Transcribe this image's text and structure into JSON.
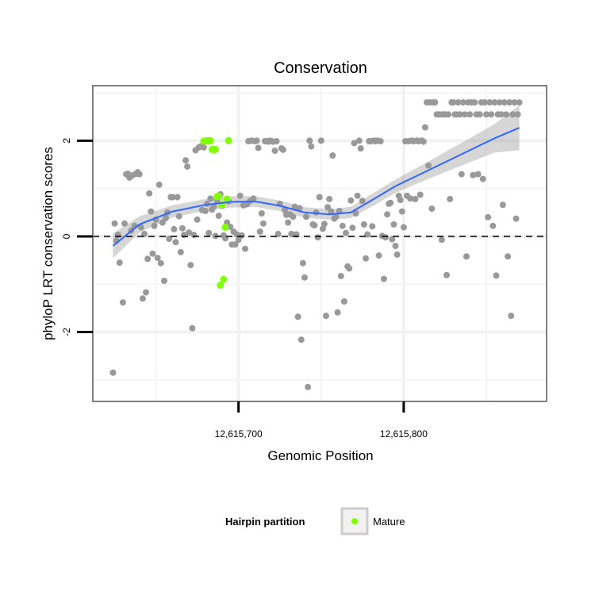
{
  "chart_data": {
    "type": "scatter",
    "title": "Conservation",
    "xlabel": "Genomic Position",
    "ylabel": "phyloP LRT conservation scores",
    "xlim": [
      12615611.8,
      12615886.5
    ],
    "ylim": [
      -3.45,
      3.15
    ],
    "x_ticks": [
      12615700,
      12615800
    ],
    "x_tick_labels": [
      "12,615,700",
      "12,615,800"
    ],
    "y_ticks": [
      -2,
      0,
      2
    ],
    "y_tick_labels": [
      "-2",
      "0",
      "2"
    ],
    "grid": true,
    "reference_line": {
      "y": 0,
      "style": "dashed"
    },
    "legend": {
      "title": "Hairpin partition",
      "entries": [
        "Mature"
      ],
      "position": "bottom"
    },
    "colors": {
      "points": "#999999",
      "mature": "#7FFF00",
      "smooth": "#3366FF",
      "ribbon": "#999999"
    },
    "series": [
      {
        "name": "",
        "color": "#999999",
        "points": [
          [
            12615624,
            -2.85
          ],
          [
            12615625,
            0.27
          ],
          [
            12615626,
            -0.09
          ],
          [
            12615627,
            0.03
          ],
          [
            12615628,
            -0.55
          ],
          [
            12615630,
            -1.38
          ],
          [
            12615631,
            0.27
          ],
          [
            12615632,
            1.3
          ],
          [
            12615633,
            1.31
          ],
          [
            12615634,
            1.23
          ],
          [
            12615635,
            0.12
          ],
          [
            12615636,
            1.28
          ],
          [
            12615637,
            0.22
          ],
          [
            12615638,
            1.31
          ],
          [
            12615639,
            1.34
          ],
          [
            12615640,
            1.3
          ],
          [
            12615641,
            0.19
          ],
          [
            12615642,
            -1.3
          ],
          [
            12615643,
            0.05
          ],
          [
            12615644,
            -1.17
          ],
          [
            12615645,
            -0.47
          ],
          [
            12615646,
            0.9
          ],
          [
            12615647,
            0.52
          ],
          [
            12615648,
            -0.36
          ],
          [
            12615649,
            0.22
          ],
          [
            12615650,
            0.35
          ],
          [
            12615651,
            -0.45
          ],
          [
            12615652,
            1.08
          ],
          [
            12615653,
            -0.56
          ],
          [
            12615654,
            0.29
          ],
          [
            12615655,
            -0.93
          ],
          [
            12615656,
            0.38
          ],
          [
            12615657,
            0.5
          ],
          [
            12615658,
            -0.05
          ],
          [
            12615659,
            0.82
          ],
          [
            12615660,
            0.82
          ],
          [
            12615661,
            0.15
          ],
          [
            12615662,
            -0.12
          ],
          [
            12615663,
            0.82
          ],
          [
            12615664,
            0.42
          ],
          [
            12615665,
            -0.33
          ],
          [
            12615666,
            0.17
          ],
          [
            12615667,
            0.03
          ],
          [
            12615668,
            1.59
          ],
          [
            12615669,
            1.46
          ],
          [
            12615670,
            0.08
          ],
          [
            12615671,
            -0.6
          ],
          [
            12615672,
            -1.92
          ],
          [
            12615673,
            0.03
          ],
          [
            12615674,
            1.8
          ],
          [
            12615675,
            0.35
          ],
          [
            12615676,
            1.86
          ],
          [
            12615677,
            1.88
          ],
          [
            12615678,
            0.55
          ],
          [
            12615679,
            1.86
          ],
          [
            12615680,
            0.53
          ],
          [
            12615681,
            0.68
          ],
          [
            12615682,
            0.07
          ],
          [
            12615683,
            0.79
          ],
          [
            12615684,
            0.56
          ],
          [
            12615685,
            0.62
          ],
          [
            12615686,
            0.01
          ],
          [
            12615687,
            0.75
          ],
          [
            12615688,
            0.43
          ],
          [
            12615689,
            0.88
          ],
          [
            12615690,
            0.64
          ],
          [
            12615691,
            0.02
          ],
          [
            12615692,
            -0.04
          ],
          [
            12615693,
            0.29
          ],
          [
            12615694,
            0.73
          ],
          [
            12615695,
            0.2
          ],
          [
            12615696,
            -0.17
          ],
          [
            12615697,
            0.1
          ],
          [
            12615698,
            -0.17
          ],
          [
            12615699,
            0.04
          ],
          [
            12615700,
            -0.07
          ],
          [
            12615701,
            0.85
          ],
          [
            12615702,
            0.02
          ],
          [
            12615703,
            0.65
          ],
          [
            12615704,
            -0.26
          ],
          [
            12615705,
            0.67
          ],
          [
            12615706,
            1.99
          ],
          [
            12615707,
            0.74
          ],
          [
            12615708,
            2.0
          ],
          [
            12615709,
            0.79
          ],
          [
            12615710,
            1.99
          ],
          [
            12615711,
            2.0
          ],
          [
            12615712,
            1.85
          ],
          [
            12615713,
            0.1
          ],
          [
            12615714,
            0.48
          ],
          [
            12615715,
            0.27
          ],
          [
            12615716,
            1.99
          ],
          [
            12615717,
            1.99
          ],
          [
            12615718,
            1.98
          ],
          [
            12615719,
            2.0
          ],
          [
            12615720,
            1.99
          ],
          [
            12615721,
            1.98
          ],
          [
            12615722,
            1.79
          ],
          [
            12615723,
            1.99
          ],
          [
            12615724,
            0.05
          ],
          [
            12615725,
            0.68
          ],
          [
            12615726,
            1.84
          ],
          [
            12615727,
            1.81
          ],
          [
            12615728,
            0.55
          ],
          [
            12615729,
            0.45
          ],
          [
            12615730,
            0.29
          ],
          [
            12615731,
            0.46
          ],
          [
            12615732,
            0.05
          ],
          [
            12615733,
            0.41
          ],
          [
            12615734,
            0.62
          ],
          [
            12615735,
            0.04
          ],
          [
            12615736,
            -1.68
          ],
          [
            12615737,
            0.59
          ],
          [
            12615738,
            -2.16
          ],
          [
            12615739,
            -0.56
          ],
          [
            12615740,
            -0.86
          ],
          [
            12615741,
            0.41
          ],
          [
            12615742,
            -3.15
          ],
          [
            12615743,
            2.0
          ],
          [
            12615744,
            1.88
          ],
          [
            12615745,
            0.25
          ],
          [
            12615746,
            0.23
          ],
          [
            12615747,
            0.5
          ],
          [
            12615748,
            -0.02
          ],
          [
            12615749,
            0.82
          ],
          [
            12615750,
            2.0
          ],
          [
            12615751,
            0.16
          ],
          [
            12615752,
            0.26
          ],
          [
            12615753,
            -1.66
          ],
          [
            12615754,
            0.61
          ],
          [
            12615755,
            0.78
          ],
          [
            12615756,
            0.52
          ],
          [
            12615757,
            1.69
          ],
          [
            12615758,
            0.37
          ],
          [
            12615759,
            0.41
          ],
          [
            12615760,
            -1.59
          ],
          [
            12615761,
            0.53
          ],
          [
            12615762,
            -0.83
          ],
          [
            12615763,
            0.22
          ],
          [
            12615764,
            -1.36
          ],
          [
            12615765,
            0.07
          ],
          [
            12615766,
            -0.63
          ],
          [
            12615767,
            -0.67
          ],
          [
            12615768,
            0.75
          ],
          [
            12615769,
            0.18
          ],
          [
            12615770,
            1.95
          ],
          [
            12615771,
            0.48
          ],
          [
            12615772,
            0.85
          ],
          [
            12615773,
            2.0
          ],
          [
            12615774,
            1.84
          ],
          [
            12615775,
            0.74
          ],
          [
            12615776,
            0.25
          ],
          [
            12615777,
            -0.46
          ],
          [
            12615778,
            0.04
          ],
          [
            12615779,
            1.99
          ],
          [
            12615780,
            1.99
          ],
          [
            12615781,
            0.21
          ],
          [
            12615782,
            2.0
          ],
          [
            12615783,
            1.99
          ],
          [
            12615784,
            2.0
          ],
          [
            12615785,
            -0.4
          ],
          [
            12615786,
            1.99
          ],
          [
            12615787,
            0.01
          ],
          [
            12615788,
            -0.89
          ],
          [
            12615789,
            -0.02
          ],
          [
            12615790,
            0.46
          ],
          [
            12615791,
            0.68
          ],
          [
            12615792,
            0.7
          ],
          [
            12615793,
            -0.06
          ],
          [
            12615794,
            0.25
          ],
          [
            12615795,
            -0.2
          ],
          [
            12615796,
            -0.38
          ],
          [
            12615797,
            0.85
          ],
          [
            12615798,
            0.76
          ],
          [
            12615799,
            0.52
          ],
          [
            12615800,
            0.19
          ],
          [
            12615801,
            1.99
          ],
          [
            12615802,
            0.85
          ],
          [
            12615803,
            1.99
          ],
          [
            12615804,
            0.79
          ],
          [
            12615805,
            2.0
          ],
          [
            12615806,
            1.99
          ],
          [
            12615807,
            0.78
          ],
          [
            12615808,
            2.0
          ],
          [
            12615809,
            1.99
          ],
          [
            12615810,
            0.87
          ],
          [
            12615811,
            2.0
          ],
          [
            12615812,
            1.98
          ],
          [
            12615813,
            2.28
          ],
          [
            12615814,
            2.8
          ],
          [
            12615815,
            1.48
          ],
          [
            12615816,
            2.8
          ],
          [
            12615817,
            0.58
          ],
          [
            12615818,
            2.8
          ],
          [
            12615819,
            2.8
          ],
          [
            12615820,
            2.55
          ],
          [
            12615821,
            2.55
          ],
          [
            12615822,
            2.55
          ],
          [
            12615823,
            -0.07
          ],
          [
            12615824,
            2.55
          ],
          [
            12615825,
            2.55
          ],
          [
            12615826,
            -0.81
          ],
          [
            12615827,
            2.55
          ],
          [
            12615828,
            0.78
          ],
          [
            12615829,
            2.8
          ],
          [
            12615830,
            2.8
          ],
          [
            12615831,
            2.55
          ],
          [
            12615832,
            2.55
          ],
          [
            12615833,
            2.8
          ],
          [
            12615834,
            2.55
          ],
          [
            12615835,
            1.3
          ],
          [
            12615836,
            2.8
          ],
          [
            12615837,
            2.55
          ],
          [
            12615838,
            -0.42
          ],
          [
            12615839,
            2.8
          ],
          [
            12615840,
            2.55
          ],
          [
            12615841,
            2.8
          ],
          [
            12615842,
            1.28
          ],
          [
            12615843,
            2.8
          ],
          [
            12615844,
            2.55
          ],
          [
            12615845,
            1.3
          ],
          [
            12615846,
            2.55
          ],
          [
            12615847,
            2.8
          ],
          [
            12615848,
            1.2
          ],
          [
            12615849,
            2.8
          ],
          [
            12615850,
            2.55
          ],
          [
            12615851,
            0.4
          ],
          [
            12615852,
            2.8
          ],
          [
            12615853,
            2.55
          ],
          [
            12615854,
            0.22
          ],
          [
            12615855,
            2.8
          ],
          [
            12615856,
            -0.82
          ],
          [
            12615857,
            2.55
          ],
          [
            12615858,
            2.8
          ],
          [
            12615859,
            2.55
          ],
          [
            12615860,
            0.66
          ],
          [
            12615861,
            2.8
          ],
          [
            12615862,
            2.55
          ],
          [
            12615863,
            -0.42
          ],
          [
            12615864,
            2.8
          ],
          [
            12615865,
            -1.66
          ],
          [
            12615866,
            2.55
          ],
          [
            12615867,
            2.8
          ],
          [
            12615868,
            0.37
          ],
          [
            12615869,
            2.55
          ],
          [
            12615870,
            2.8
          ]
        ]
      },
      {
        "name": "Mature",
        "color": "#7FFF00",
        "points": [
          [
            12615679,
            1.99
          ],
          [
            12615680,
            1.99
          ],
          [
            12615681,
            2.0
          ],
          [
            12615682,
            1.99
          ],
          [
            12615683,
            2.0
          ],
          [
            12615684,
            1.82
          ],
          [
            12615685,
            1.81
          ],
          [
            12615686,
            1.82
          ],
          [
            12615687,
            0.83
          ],
          [
            12615688,
            0.84
          ],
          [
            12615689,
            -1.02
          ],
          [
            12615690,
            0.66
          ],
          [
            12615691,
            -0.9
          ],
          [
            12615692,
            0.19
          ],
          [
            12615693,
            0.78
          ],
          [
            12615694,
            2.0
          ]
        ]
      }
    ],
    "smooth": {
      "method": "loess",
      "color": "#3366FF",
      "x": [
        12615624,
        12615640,
        12615660,
        12615680,
        12615695,
        12615710,
        12615725,
        12615740,
        12615755,
        12615768,
        12615780,
        12615795,
        12615810,
        12615825,
        12615840,
        12615855,
        12615870
      ],
      "y": [
        -0.2,
        0.25,
        0.52,
        0.66,
        0.72,
        0.73,
        0.64,
        0.5,
        0.46,
        0.5,
        0.74,
        1.05,
        1.3,
        1.55,
        1.8,
        2.05,
        2.27
      ],
      "lower": [
        -0.46,
        0.08,
        0.39,
        0.54,
        0.6,
        0.62,
        0.53,
        0.39,
        0.35,
        0.38,
        0.61,
        0.91,
        1.13,
        1.34,
        1.55,
        1.75,
        1.8
      ],
      "upper": [
        0.06,
        0.42,
        0.65,
        0.78,
        0.84,
        0.84,
        0.75,
        0.61,
        0.57,
        0.62,
        0.87,
        1.19,
        1.47,
        1.76,
        2.05,
        2.35,
        2.74
      ]
    }
  }
}
